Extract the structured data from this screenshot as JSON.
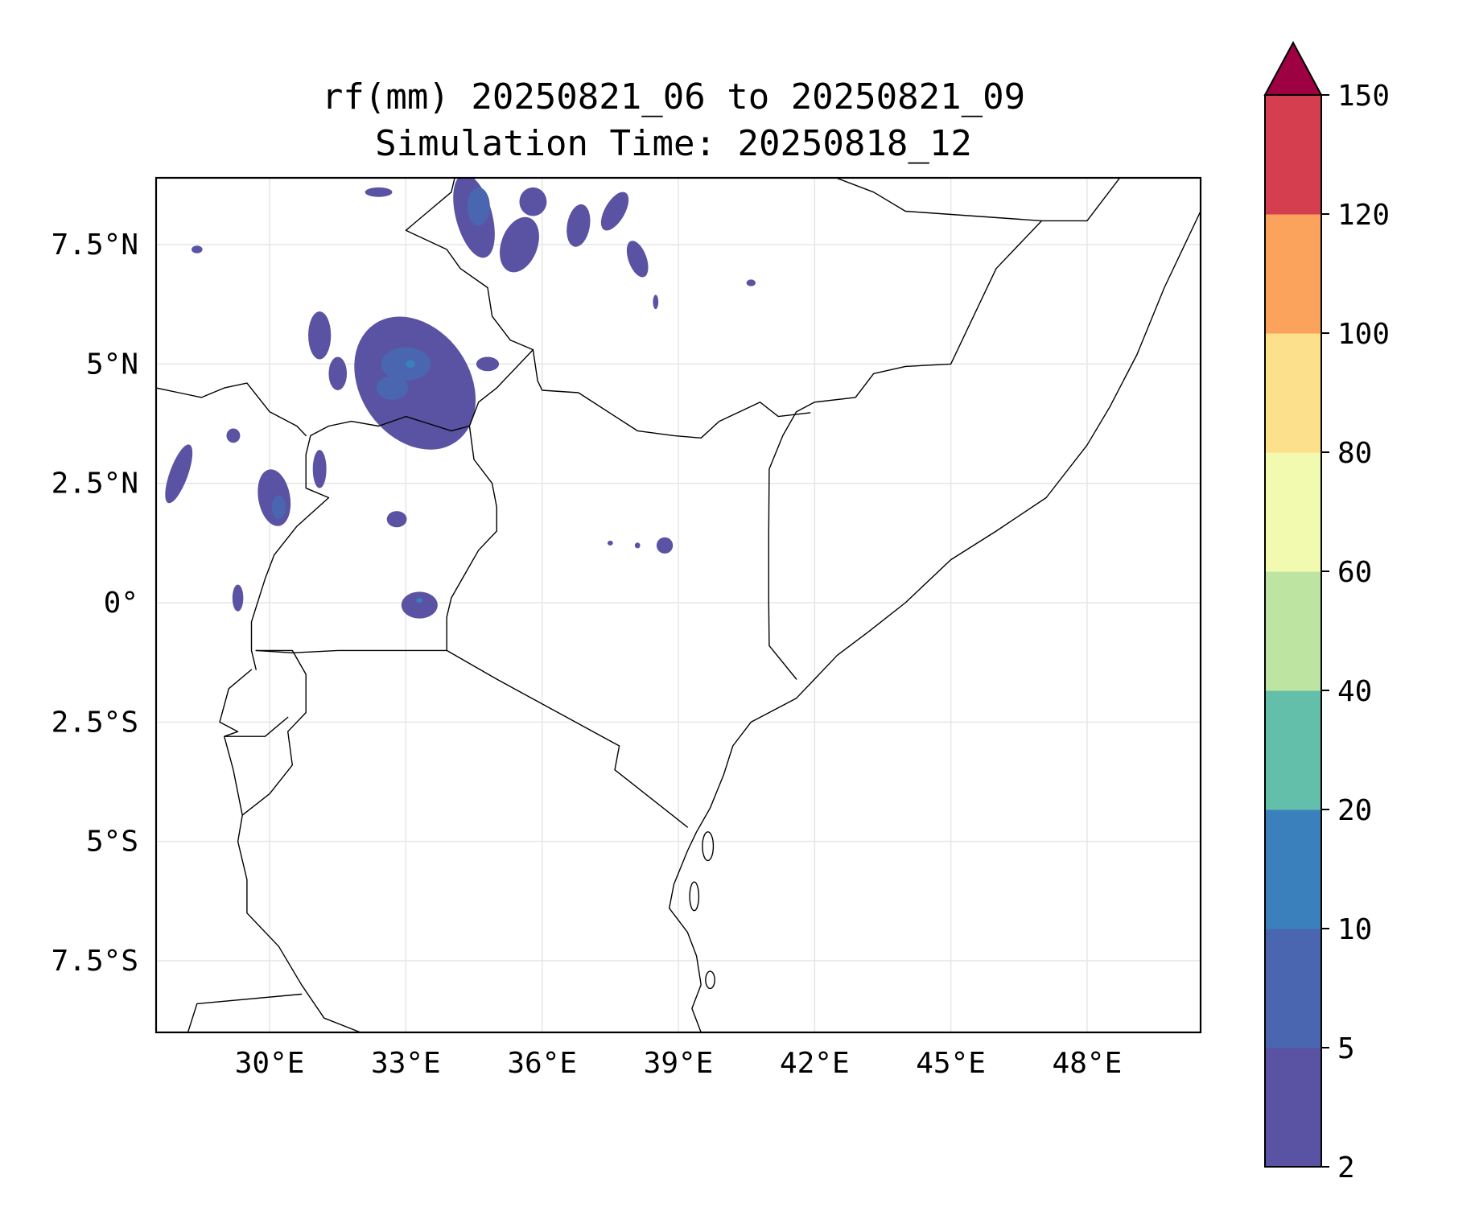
{
  "map": {
    "title_line1": "rf(mm) 20250821_06 to 20250821_09",
    "title_line2": "Simulation Time: 20250818_12",
    "lon_range": [
      27.5,
      50.5
    ],
    "lat_range": [
      -9.0,
      8.9
    ],
    "gridlines": true,
    "lon_ticks": [
      {
        "value": 30,
        "label": "30°E"
      },
      {
        "value": 33,
        "label": "33°E"
      },
      {
        "value": 36,
        "label": "36°E"
      },
      {
        "value": 39,
        "label": "39°E"
      },
      {
        "value": 42,
        "label": "42°E"
      },
      {
        "value": 45,
        "label": "45°E"
      },
      {
        "value": 48,
        "label": "48°E"
      }
    ],
    "lat_ticks": [
      {
        "value": 7.5,
        "label": "7.5°N"
      },
      {
        "value": 5,
        "label": "5°N"
      },
      {
        "value": 2.5,
        "label": "2.5°N"
      },
      {
        "value": 0,
        "label": "0°"
      },
      {
        "value": -2.5,
        "label": "2.5°S"
      },
      {
        "value": -5,
        "label": "5°S"
      },
      {
        "value": -7.5,
        "label": "7.5°S"
      }
    ],
    "rain_cells": [
      {
        "lon": 33.2,
        "lat": 4.6,
        "rlon": 1.2,
        "rlat": 1.5,
        "rot": -35,
        "level": 0
      },
      {
        "lon": 33.0,
        "lat": 5.0,
        "rlon": 0.55,
        "rlat": 0.35,
        "rot": 0,
        "level": 1
      },
      {
        "lon": 32.7,
        "lat": 4.5,
        "rlon": 0.35,
        "rlat": 0.25,
        "rot": 0,
        "level": 1
      },
      {
        "lon": 33.1,
        "lat": 5.0,
        "rlon": 0.1,
        "rlat": 0.08,
        "rot": 0,
        "level": 2
      },
      {
        "lon": 34.5,
        "lat": 8.1,
        "rlon": 0.4,
        "rlat": 0.9,
        "rot": -15,
        "level": 0
      },
      {
        "lon": 34.6,
        "lat": 8.3,
        "rlon": 0.25,
        "rlat": 0.4,
        "rot": 0,
        "level": 1
      },
      {
        "lon": 35.5,
        "lat": 7.5,
        "rlon": 0.4,
        "rlat": 0.6,
        "rot": 20,
        "level": 0
      },
      {
        "lon": 36.8,
        "lat": 7.9,
        "rlon": 0.25,
        "rlat": 0.45,
        "rot": 10,
        "level": 0
      },
      {
        "lon": 37.6,
        "lat": 8.2,
        "rlon": 0.22,
        "rlat": 0.45,
        "rot": 30,
        "level": 0
      },
      {
        "lon": 38.1,
        "lat": 7.2,
        "rlon": 0.2,
        "rlat": 0.4,
        "rot": -20,
        "level": 0
      },
      {
        "lon": 35.8,
        "lat": 8.4,
        "rlon": 0.3,
        "rlat": 0.3,
        "rot": 0,
        "level": 0
      },
      {
        "lon": 31.1,
        "lat": 5.6,
        "rlon": 0.25,
        "rlat": 0.5,
        "rot": 0,
        "level": 0
      },
      {
        "lon": 31.5,
        "lat": 4.8,
        "rlon": 0.2,
        "rlat": 0.35,
        "rot": 0,
        "level": 0
      },
      {
        "lon": 32.4,
        "lat": 8.6,
        "rlon": 0.3,
        "rlat": 0.1,
        "rot": 0,
        "level": 0
      },
      {
        "lon": 34.8,
        "lat": 5.0,
        "rlon": 0.25,
        "rlat": 0.15,
        "rot": 0,
        "level": 0
      },
      {
        "lon": 28.0,
        "lat": 2.7,
        "rlon": 0.2,
        "rlat": 0.65,
        "rot": 20,
        "level": 0
      },
      {
        "lon": 30.1,
        "lat": 2.2,
        "rlon": 0.35,
        "rlat": 0.6,
        "rot": -10,
        "level": 0
      },
      {
        "lon": 30.2,
        "lat": 2.0,
        "rlon": 0.15,
        "rlat": 0.25,
        "rot": 0,
        "level": 1
      },
      {
        "lon": 31.1,
        "lat": 2.8,
        "rlon": 0.15,
        "rlat": 0.4,
        "rot": 0,
        "level": 0
      },
      {
        "lon": 29.2,
        "lat": 3.5,
        "rlon": 0.15,
        "rlat": 0.15,
        "rot": 0,
        "level": 0
      },
      {
        "lon": 33.3,
        "lat": -0.05,
        "rlon": 0.4,
        "rlat": 0.28,
        "rot": 0,
        "level": 0
      },
      {
        "lon": 33.3,
        "lat": 0.05,
        "rlon": 0.07,
        "rlat": 0.05,
        "rot": 0,
        "level": 2
      },
      {
        "lon": 32.8,
        "lat": 1.75,
        "rlon": 0.22,
        "rlat": 0.17,
        "rot": 0,
        "level": 0
      },
      {
        "lon": 38.7,
        "lat": 1.2,
        "rlon": 0.18,
        "rlat": 0.17,
        "rot": 0,
        "level": 0
      },
      {
        "lon": 29.3,
        "lat": 0.1,
        "rlon": 0.12,
        "rlat": 0.28,
        "rot": 0,
        "level": 0
      },
      {
        "lon": 38.1,
        "lat": 1.2,
        "rlon": 0.06,
        "rlat": 0.06,
        "rot": 0,
        "level": 0
      },
      {
        "lon": 37.5,
        "lat": 1.25,
        "rlon": 0.06,
        "rlat": 0.05,
        "rot": 0,
        "level": 0
      },
      {
        "lon": 28.4,
        "lat": 7.4,
        "rlon": 0.12,
        "rlat": 0.08,
        "rot": 0,
        "level": 0
      },
      {
        "lon": 38.5,
        "lat": 6.3,
        "rlon": 0.06,
        "rlat": 0.15,
        "rot": 0,
        "level": 0
      },
      {
        "lon": 40.6,
        "lat": 6.7,
        "rlon": 0.1,
        "rlat": 0.07,
        "rot": 0,
        "level": 0
      }
    ]
  },
  "colorbar": {
    "levels": [
      2,
      5,
      10,
      20,
      40,
      60,
      80,
      100,
      120,
      150
    ],
    "tick_labels": [
      "2",
      "5",
      "10",
      "20",
      "40",
      "60",
      "80",
      "100",
      "120",
      "150"
    ],
    "colors": [
      "#5a52a3",
      "#4a66b0",
      "#3a80bd",
      "#63bfa9",
      "#bde4a0",
      "#f2faaf",
      "#fde08b",
      "#fba25c",
      "#d53e4f"
    ],
    "extend_max_color": "#9e0142"
  }
}
